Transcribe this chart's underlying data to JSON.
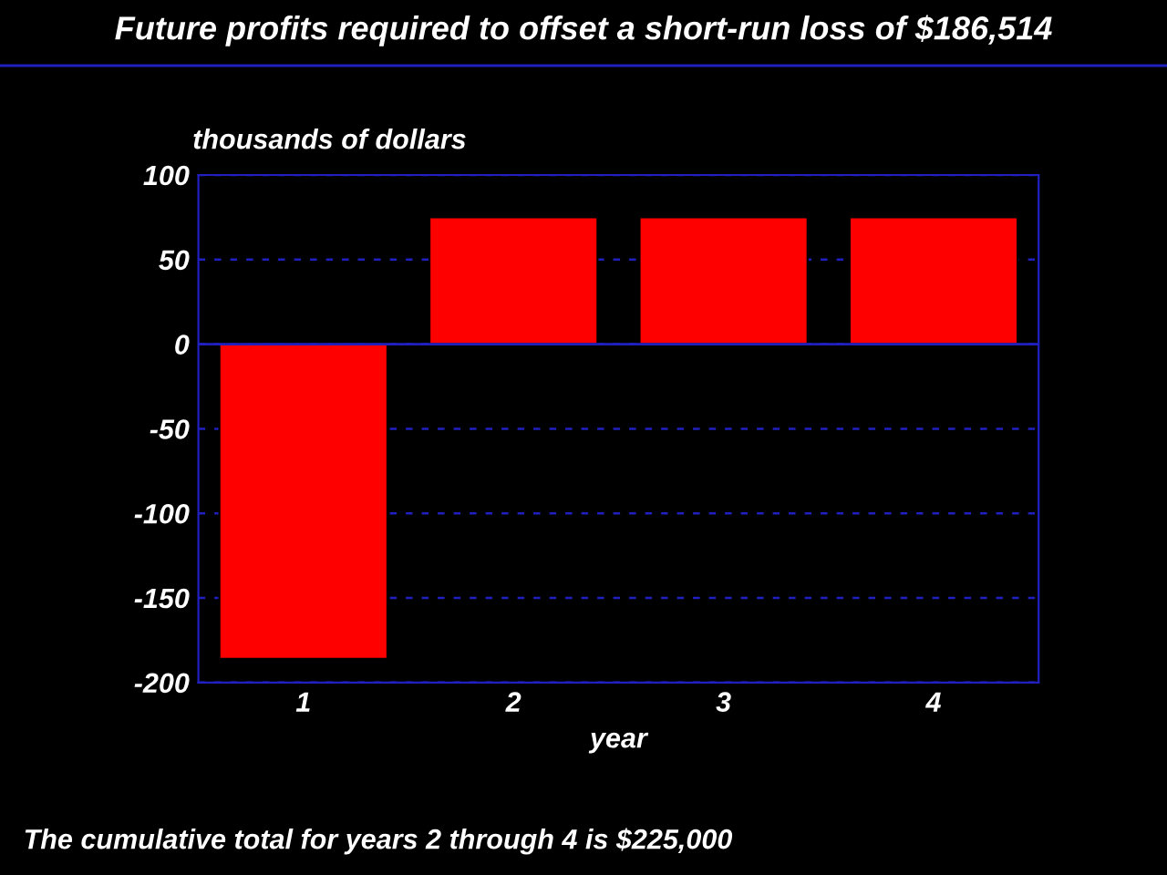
{
  "chart_data": {
    "type": "bar",
    "title": "Future profits required to offset a short-run loss of $186,514",
    "xlabel": "year",
    "ylabel": "thousands of dollars",
    "categories": [
      "1",
      "2",
      "3",
      "4"
    ],
    "values": [
      -186,
      75,
      75,
      75
    ],
    "ref_lines": [
      {
        "axis": "y",
        "value": 0,
        "color": "#2020c0"
      }
    ],
    "color": "#ff0000",
    "ylim": [
      -200,
      100
    ],
    "yticks": [
      -200,
      -150,
      -100,
      -50,
      0,
      50,
      100
    ],
    "grid": "y",
    "annotations": [
      "The cumulative total for years 2 through 4 is $225,000"
    ]
  }
}
